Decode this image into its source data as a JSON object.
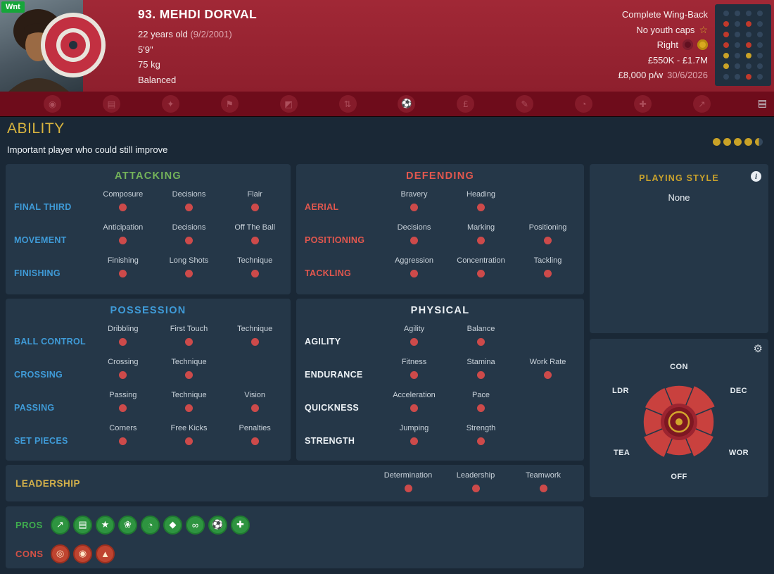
{
  "header": {
    "wanted_badge": "Wnt",
    "player_name": "93. MEHDI DORVAL",
    "age": "22 years old",
    "birth_date": "(9/2/2001)",
    "height": "5'9\"",
    "weight": "75 kg",
    "body_type": "Balanced",
    "best_role": "Complete Wing-Back",
    "youth_caps": "No youth caps",
    "preferred_foot": "Right",
    "transfer_value": "£550K - £1.7M",
    "wage": "£8,000 p/w",
    "contract_expiry": "30/6/2026",
    "mini_grid": [
      [
        "d",
        "d",
        "d",
        "d"
      ],
      [
        "r",
        "d",
        "r",
        "d"
      ],
      [
        "r",
        "d",
        "d",
        "d"
      ],
      [
        "r",
        "d",
        "r",
        "d"
      ],
      [
        "g",
        "d",
        "g",
        "d"
      ],
      [
        "g",
        "d",
        "d",
        "d"
      ],
      [
        "d",
        "d",
        "r",
        "d"
      ]
    ]
  },
  "nav": {
    "icons": [
      {
        "name": "nav-overview-icon",
        "glyph": "◉"
      },
      {
        "name": "nav-profile-icon",
        "glyph": "▤"
      },
      {
        "name": "nav-attributes-icon",
        "glyph": "✦"
      },
      {
        "name": "nav-positions-icon",
        "glyph": "⚑"
      },
      {
        "name": "nav-coaching-icon",
        "glyph": "◩"
      },
      {
        "name": "nav-training-icon",
        "glyph": "⇅"
      },
      {
        "name": "nav-matches-icon",
        "glyph": "⚽"
      },
      {
        "name": "nav-transfer-icon",
        "glyph": "£"
      },
      {
        "name": "nav-contract-icon",
        "glyph": "✎"
      },
      {
        "name": "nav-history-icon",
        "glyph": "◔"
      },
      {
        "name": "nav-medical-icon",
        "glyph": "✚"
      },
      {
        "name": "nav-development-icon",
        "glyph": "↗"
      }
    ],
    "notes_icon_glyph": "▤"
  },
  "ability": {
    "title": "ABILITY",
    "subtitle": "Important player who could still improve",
    "rating_full": 4,
    "rating_half": 1,
    "rating_total": 5
  },
  "panels": {
    "attacking": {
      "title": "ATTACKING",
      "title_color": "#74b35a",
      "row_label_color": "#3f9bd8",
      "rows": [
        {
          "label": "FINAL THIRD",
          "attrs": [
            "Composure",
            "Decisions",
            "Flair"
          ]
        },
        {
          "label": "MOVEMENT",
          "attrs": [
            "Anticipation",
            "Decisions",
            "Off The Ball"
          ]
        },
        {
          "label": "FINISHING",
          "attrs": [
            "Finishing",
            "Long Shots",
            "Technique"
          ]
        }
      ]
    },
    "defending": {
      "title": "DEFENDING",
      "title_color": "#e2574e",
      "row_label_color": "#e2574e",
      "rows": [
        {
          "label": "AERIAL",
          "attrs": [
            "Bravery",
            "Heading"
          ]
        },
        {
          "label": "POSITIONING",
          "attrs": [
            "Decisions",
            "Marking",
            "Positioning"
          ]
        },
        {
          "label": "TACKLING",
          "attrs": [
            "Aggression",
            "Concentration",
            "Tackling"
          ]
        }
      ]
    },
    "possession": {
      "title": "POSSESSION",
      "title_color": "#3f9bd8",
      "row_label_color": "#3f9bd8",
      "rows": [
        {
          "label": "BALL CONTROL",
          "attrs": [
            "Dribbling",
            "First Touch",
            "Technique"
          ]
        },
        {
          "label": "CROSSING",
          "attrs": [
            "Crossing",
            "Technique"
          ]
        },
        {
          "label": "PASSING",
          "attrs": [
            "Passing",
            "Technique",
            "Vision"
          ]
        },
        {
          "label": "SET PIECES",
          "attrs": [
            "Corners",
            "Free Kicks",
            "Penalties"
          ]
        }
      ]
    },
    "physical": {
      "title": "PHYSICAL",
      "title_color": "#ecf1f5",
      "row_label_color": "#ecf1f5",
      "rows": [
        {
          "label": "AGILITY",
          "attrs": [
            "Agility",
            "Balance"
          ]
        },
        {
          "label": "ENDURANCE",
          "attrs": [
            "Fitness",
            "Stamina",
            "Work Rate"
          ]
        },
        {
          "label": "QUICKNESS",
          "attrs": [
            "Acceleration",
            "Pace"
          ]
        },
        {
          "label": "STRENGTH",
          "attrs": [
            "Jumping",
            "Strength"
          ]
        }
      ]
    }
  },
  "playing_style": {
    "title": "PLAYING STYLE",
    "value": "None"
  },
  "radar": {
    "labels": {
      "top": "CON",
      "top_right": "DEC",
      "bottom_right": "WOR",
      "bottom": "OFF",
      "bottom_left": "TEA",
      "top_left": "LDR"
    },
    "segment_radii": [
      52,
      56,
      50,
      54,
      48,
      55,
      51,
      53
    ],
    "color": "#c9413e"
  },
  "leadership": {
    "title": "LEADERSHIP",
    "attrs": [
      "Determination",
      "Leadership",
      "Teamwork"
    ]
  },
  "pros_cons": {
    "pros_label": "PROS",
    "cons_label": "CONS",
    "pros": [
      {
        "name": "trend-up-icon",
        "glyph": "↗"
      },
      {
        "name": "notes-pro-icon",
        "glyph": "▤"
      },
      {
        "name": "star-pro-icon",
        "glyph": "★"
      },
      {
        "name": "flair-leaf-icon",
        "glyph": "❀"
      },
      {
        "name": "clock-pro-icon",
        "glyph": "◔"
      },
      {
        "name": "shield-pro-icon",
        "glyph": "◆"
      },
      {
        "name": "link-pro-icon",
        "glyph": "∞"
      },
      {
        "name": "football-pro-icon",
        "glyph": "⚽"
      },
      {
        "name": "flask-pro-icon",
        "glyph": "✚"
      }
    ],
    "cons": [
      {
        "name": "consistency-con-icon",
        "glyph": "◎"
      },
      {
        "name": "scouting-con-icon",
        "glyph": "◉"
      },
      {
        "name": "alert-con-icon",
        "glyph": "▲"
      }
    ]
  }
}
